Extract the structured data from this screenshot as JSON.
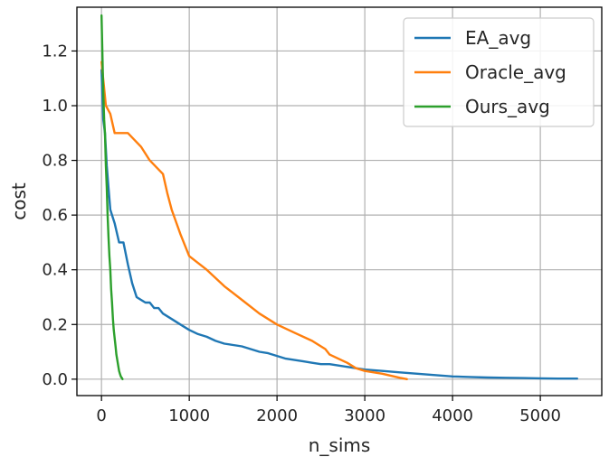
{
  "chart_data": {
    "type": "line",
    "title": "",
    "xlabel": "n_sims",
    "ylabel": "cost",
    "xlim": [
      -280,
      5700
    ],
    "ylim": [
      -0.06,
      1.36
    ],
    "xticks": [
      0,
      1000,
      2000,
      3000,
      4000,
      5000
    ],
    "xtick_labels": [
      "0",
      "1000",
      "2000",
      "3000",
      "4000",
      "5000"
    ],
    "yticks": [
      0.0,
      0.2,
      0.4,
      0.6,
      0.8,
      1.0,
      1.2
    ],
    "ytick_labels": [
      "0.0",
      "0.2",
      "0.4",
      "0.6",
      "0.8",
      "1.0",
      "1.2"
    ],
    "grid": true,
    "legend_position": "top-right",
    "series": [
      {
        "name": "EA_avg",
        "color": "#1f77b4",
        "x": [
          0,
          20,
          40,
          60,
          80,
          100,
          120,
          150,
          200,
          250,
          300,
          350,
          400,
          450,
          500,
          550,
          600,
          650,
          700,
          750,
          800,
          900,
          1000,
          1100,
          1200,
          1300,
          1400,
          1500,
          1600,
          1700,
          1800,
          1900,
          2000,
          2100,
          2200,
          2300,
          2400,
          2500,
          2600,
          2700,
          2800,
          2900,
          3000,
          3200,
          3400,
          3600,
          3800,
          4000,
          4200,
          4400,
          4600,
          4800,
          5000,
          5200,
          5420
        ],
        "y": [
          1.13,
          0.95,
          0.9,
          0.78,
          0.7,
          0.62,
          0.6,
          0.57,
          0.5,
          0.5,
          0.42,
          0.35,
          0.3,
          0.29,
          0.28,
          0.28,
          0.26,
          0.26,
          0.24,
          0.23,
          0.22,
          0.2,
          0.18,
          0.165,
          0.155,
          0.14,
          0.13,
          0.125,
          0.12,
          0.11,
          0.1,
          0.095,
          0.085,
          0.075,
          0.07,
          0.065,
          0.06,
          0.055,
          0.055,
          0.05,
          0.045,
          0.04,
          0.035,
          0.03,
          0.025,
          0.02,
          0.015,
          0.01,
          0.008,
          0.006,
          0.005,
          0.004,
          0.003,
          0.002,
          0.002
        ]
      },
      {
        "name": "Oracle_avg",
        "color": "#ff7f0e",
        "x": [
          0,
          50,
          100,
          150,
          200,
          300,
          450,
          550,
          700,
          750,
          800,
          900,
          1000,
          1200,
          1400,
          1600,
          1800,
          2000,
          2200,
          2400,
          2550,
          2600,
          2800,
          2900,
          3000,
          3200,
          3400,
          3480
        ],
        "y": [
          1.16,
          1.0,
          0.97,
          0.9,
          0.9,
          0.9,
          0.85,
          0.8,
          0.75,
          0.68,
          0.62,
          0.53,
          0.45,
          0.4,
          0.34,
          0.29,
          0.24,
          0.2,
          0.17,
          0.14,
          0.11,
          0.09,
          0.06,
          0.04,
          0.03,
          0.02,
          0.005,
          0.0
        ]
      },
      {
        "name": "Ours_avg",
        "color": "#2ca02c",
        "x": [
          0,
          10,
          20,
          30,
          40,
          50,
          60,
          70,
          80,
          90,
          100,
          110,
          120,
          130,
          140,
          150,
          160,
          170,
          180,
          190,
          200,
          210,
          220,
          230,
          240
        ],
        "y": [
          1.33,
          1.2,
          1.05,
          0.95,
          0.9,
          0.78,
          0.7,
          0.6,
          0.52,
          0.45,
          0.4,
          0.33,
          0.28,
          0.22,
          0.18,
          0.15,
          0.12,
          0.09,
          0.07,
          0.05,
          0.03,
          0.02,
          0.01,
          0.005,
          0.0
        ]
      }
    ]
  }
}
